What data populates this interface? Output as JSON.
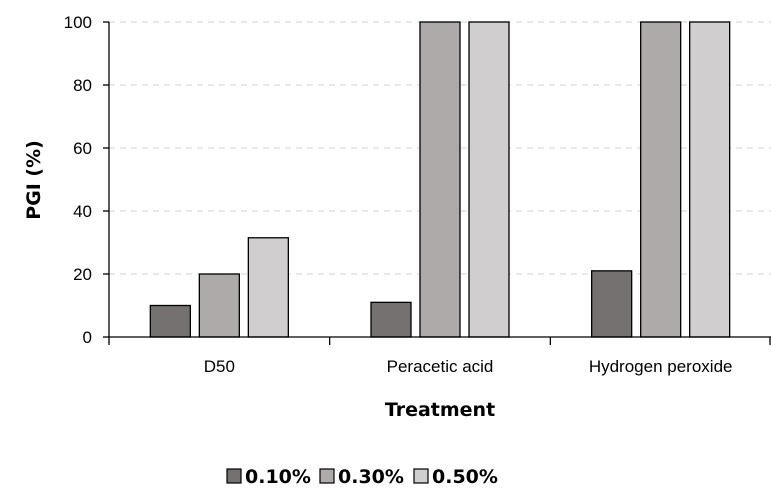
{
  "chart_data": {
    "type": "bar",
    "categories": [
      "D50",
      "Peracetic acid",
      "Hydrogen peroxide"
    ],
    "series": [
      {
        "name": "0.10%",
        "values": [
          10,
          11,
          21
        ],
        "color": "#757171"
      },
      {
        "name": "0.30%",
        "values": [
          20,
          100,
          100
        ],
        "color": "#aeaaaa"
      },
      {
        "name": "0.50%",
        "values": [
          31.5,
          100,
          100
        ],
        "color": "#d0cece"
      }
    ],
    "xlabel": "Treatment",
    "ylabel": "PGI (%)",
    "ylim": [
      0,
      100
    ],
    "yticks": [
      0,
      20,
      40,
      60,
      80,
      100
    ],
    "grid": "horizontal-dashed",
    "legend_position": "bottom"
  }
}
